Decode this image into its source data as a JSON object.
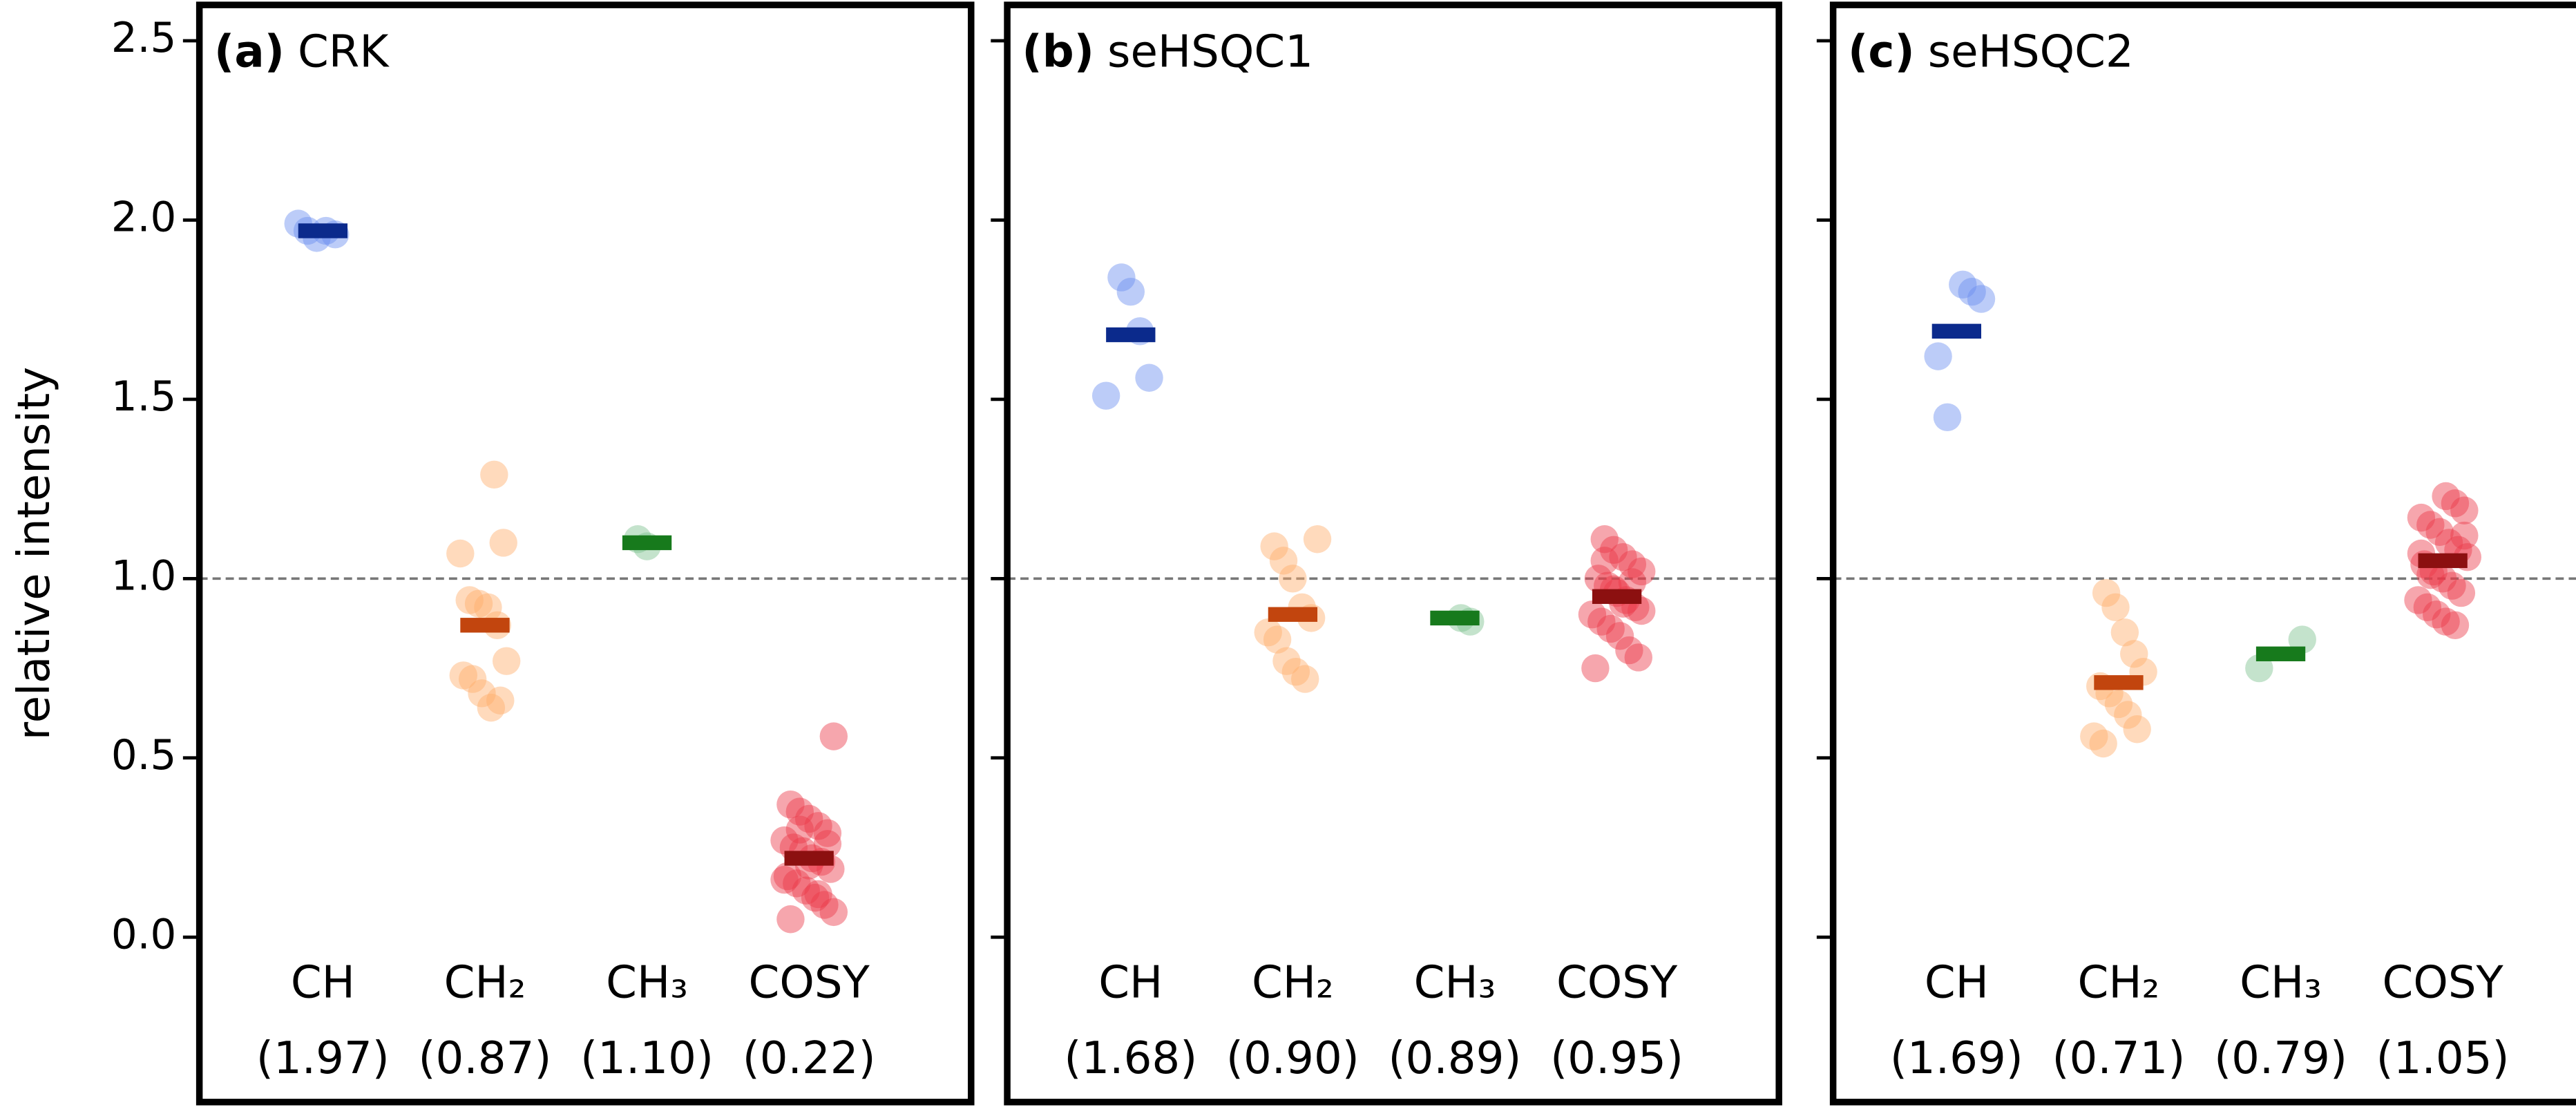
{
  "chart_data": [
    {
      "type": "strip",
      "panel_label": "(a)",
      "title": "CRK",
      "ylabel": "relative intensity",
      "ylim": [
        -0.46,
        2.6
      ],
      "yticks": [
        {
          "value": 0,
          "label": "0.0"
        },
        0.5,
        {
          "value": 1,
          "label": "1.0"
        },
        1.5,
        {
          "value": 2,
          "label": "2.0"
        },
        2.5
      ],
      "hline": 1,
      "series": [
        {
          "name": "CH",
          "color": "#6b8ff0",
          "mean_color": "#0b2a8c",
          "label_color": "#1a4fe6",
          "values": [
            1.99,
            1.97,
            1.95,
            1.97,
            1.96
          ],
          "mean": 1.97,
          "mean_label": "(1.97)"
        },
        {
          "name": "CH₂",
          "color": "#ffac6a",
          "mean_color": "#c2450e",
          "label_color": "#ff8424",
          "values": [
            1.29,
            1.1,
            1.07,
            0.94,
            0.93,
            0.92,
            0.87,
            0.77,
            0.73,
            0.72,
            0.68,
            0.64,
            0.66
          ],
          "mean": 0.87,
          "mean_label": "(0.87)"
        },
        {
          "name": "CH₃",
          "color": "#7dc08e",
          "mean_color": "#177a1c",
          "label_color": "#52a264",
          "values": [
            1.11,
            1.09
          ],
          "mean": 1.1,
          "mean_label": "(1.10)"
        },
        {
          "name": "COSY",
          "color": "#ea3a4a",
          "mean_color": "#8c1010",
          "label_color": "#e3101e",
          "values": [
            0.56,
            0.37,
            0.35,
            0.33,
            0.31,
            0.29,
            0.27,
            0.25,
            0.24,
            0.22,
            0.21,
            0.19,
            0.17,
            0.15,
            0.13,
            0.11,
            0.09,
            0.07,
            0.05,
            0.3,
            0.2,
            0.12,
            0.26,
            0.16
          ],
          "mean": 0.22,
          "mean_label": "(0.22)"
        }
      ]
    },
    {
      "type": "strip",
      "panel_label": "(b)",
      "title": "seHSQC1",
      "hline": 1,
      "series": [
        {
          "name": "CH",
          "color": "#6b8ff0",
          "mean_color": "#0b2a8c",
          "label_color": "#1a4fe6",
          "values": [
            1.84,
            1.8,
            1.69,
            1.56,
            1.51
          ],
          "mean": 1.68,
          "mean_label": "(1.68)"
        },
        {
          "name": "CH₂",
          "color": "#ffac6a",
          "mean_color": "#c2450e",
          "label_color": "#ff8424",
          "values": [
            1.11,
            1.09,
            1.05,
            1.0,
            0.92,
            0.89,
            0.85,
            0.83,
            0.77,
            0.74,
            0.72
          ],
          "mean": 0.9,
          "mean_label": "(0.90)"
        },
        {
          "name": "CH₃",
          "color": "#7dc08e",
          "mean_color": "#177a1c",
          "label_color": "#52a264",
          "values": [
            0.89,
            0.88
          ],
          "mean": 0.89,
          "mean_label": "(0.89)"
        },
        {
          "name": "COSY",
          "color": "#ea3a4a",
          "mean_color": "#8c1010",
          "label_color": "#e3101e",
          "values": [
            1.11,
            1.08,
            1.06,
            1.04,
            1.02,
            1.0,
            0.98,
            0.96,
            0.94,
            0.92,
            0.9,
            0.88,
            0.86,
            0.84,
            0.8,
            0.78,
            0.75,
            1.05,
            0.97,
            0.93,
            0.99,
            0.91
          ],
          "mean": 0.95,
          "mean_label": "(0.95)"
        }
      ]
    },
    {
      "type": "strip",
      "panel_label": "(c)",
      "title": "seHSQC2",
      "hline": 1,
      "series": [
        {
          "name": "CH",
          "color": "#6b8ff0",
          "mean_color": "#0b2a8c",
          "label_color": "#1a4fe6",
          "values": [
            1.82,
            1.8,
            1.78,
            1.62,
            1.45
          ],
          "mean": 1.69,
          "mean_label": "(1.69)"
        },
        {
          "name": "CH₂",
          "color": "#ffac6a",
          "mean_color": "#c2450e",
          "label_color": "#ff8424",
          "values": [
            0.96,
            0.92,
            0.85,
            0.79,
            0.74,
            0.7,
            0.68,
            0.65,
            0.62,
            0.58,
            0.56,
            0.54
          ],
          "mean": 0.71,
          "mean_label": "(0.71)"
        },
        {
          "name": "CH₃",
          "color": "#7dc08e",
          "mean_color": "#177a1c",
          "label_color": "#52a264",
          "values": [
            0.83,
            0.75
          ],
          "mean": 0.79,
          "mean_label": "(0.79)"
        },
        {
          "name": "COSY",
          "color": "#ea3a4a",
          "mean_color": "#8c1010",
          "label_color": "#e3101e",
          "values": [
            1.23,
            1.21,
            1.19,
            1.17,
            1.15,
            1.13,
            1.1,
            1.08,
            1.06,
            1.04,
            1.02,
            1.0,
            0.98,
            0.96,
            0.94,
            0.92,
            0.9,
            0.88,
            0.87,
            1.12,
            1.07,
            1.01
          ],
          "mean": 1.05,
          "mean_label": "(1.05)"
        }
      ]
    }
  ]
}
